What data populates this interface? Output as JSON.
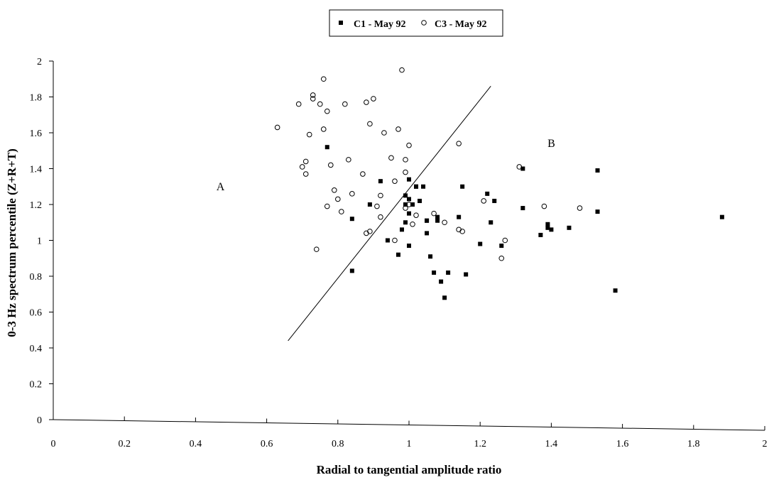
{
  "chart_data": {
    "type": "scatter",
    "xlabel": "Radial to tangential amplitude ratio",
    "ylabel": "0-3 Hz spectrum percentile (Z+R+T)",
    "xlim": [
      0,
      2
    ],
    "ylim": [
      0,
      2
    ],
    "x_ticks": [
      "0",
      "0.2",
      "0.4",
      "0.6",
      "0.8",
      "1",
      "1.2",
      "1.4",
      "1.6",
      "1.8",
      "2"
    ],
    "y_ticks": [
      "0",
      "0.2",
      "0.4",
      "0.6",
      "0.8",
      "1",
      "1.2",
      "1.4",
      "1.6",
      "1.8",
      "2"
    ],
    "grid": false,
    "legend_position": "top-center",
    "annotations": [
      {
        "text": "A",
        "x": 0.47,
        "y": 1.28
      },
      {
        "text": "B",
        "x": 1.4,
        "y": 1.52
      }
    ],
    "divider_line": {
      "x": [
        0.66,
        1.23
      ],
      "y": [
        0.44,
        1.86
      ]
    },
    "series": [
      {
        "name": "C1 - May 92",
        "marker": "filled-square",
        "color": "#000000",
        "x": [
          0.77,
          0.84,
          0.84,
          0.89,
          0.92,
          0.94,
          0.97,
          0.98,
          0.99,
          0.99,
          0.99,
          1.0,
          1.0,
          1.0,
          1.0,
          1.01,
          1.02,
          1.02,
          1.03,
          1.04,
          1.05,
          1.05,
          1.05,
          1.06,
          1.07,
          1.08,
          1.08,
          1.09,
          1.1,
          1.11,
          1.14,
          1.15,
          1.16,
          1.2,
          1.22,
          1.23,
          1.24,
          1.26,
          1.32,
          1.32,
          1.37,
          1.39,
          1.39,
          1.4,
          1.45,
          1.53,
          1.53,
          1.58,
          1.88
        ],
        "y": [
          1.52,
          0.83,
          1.12,
          1.2,
          1.33,
          1.0,
          0.92,
          1.06,
          1.1,
          1.2,
          1.25,
          0.97,
          1.15,
          1.23,
          1.34,
          1.2,
          1.3,
          1.3,
          1.22,
          1.3,
          1.04,
          1.11,
          1.11,
          0.91,
          0.82,
          1.11,
          1.13,
          0.77,
          0.68,
          0.82,
          1.13,
          1.3,
          0.81,
          0.98,
          1.26,
          1.1,
          1.22,
          0.97,
          1.4,
          1.18,
          1.03,
          1.07,
          1.09,
          1.06,
          1.07,
          1.39,
          1.16,
          0.72,
          1.13
        ]
      },
      {
        "name": "C3 - May 92",
        "marker": "open-circle",
        "color": "#000000",
        "x": [
          0.63,
          0.69,
          0.7,
          0.71,
          0.71,
          0.72,
          0.73,
          0.73,
          0.74,
          0.75,
          0.76,
          0.76,
          0.77,
          0.77,
          0.78,
          0.79,
          0.8,
          0.81,
          0.82,
          0.83,
          0.84,
          0.87,
          0.88,
          0.88,
          0.89,
          0.89,
          0.9,
          0.91,
          0.92,
          0.92,
          0.93,
          0.95,
          0.96,
          0.96,
          0.97,
          0.98,
          0.99,
          0.99,
          0.99,
          1.0,
          1.0,
          1.01,
          1.02,
          1.07,
          1.1,
          1.14,
          1.14,
          1.15,
          1.21,
          1.26,
          1.27,
          1.31,
          1.38,
          1.48
        ],
        "y": [
          1.63,
          1.76,
          1.41,
          1.44,
          1.37,
          1.59,
          1.79,
          1.81,
          0.95,
          1.76,
          1.9,
          1.62,
          1.19,
          1.72,
          1.42,
          1.28,
          1.23,
          1.16,
          1.76,
          1.45,
          1.26,
          1.37,
          1.77,
          1.04,
          1.05,
          1.65,
          1.79,
          1.19,
          1.13,
          1.25,
          1.6,
          1.46,
          1.0,
          1.33,
          1.62,
          1.95,
          1.45,
          1.38,
          1.18,
          1.53,
          1.2,
          1.09,
          1.14,
          1.15,
          1.1,
          1.54,
          1.06,
          1.05,
          1.22,
          0.9,
          1.0,
          1.41,
          1.19,
          1.18
        ]
      }
    ]
  }
}
